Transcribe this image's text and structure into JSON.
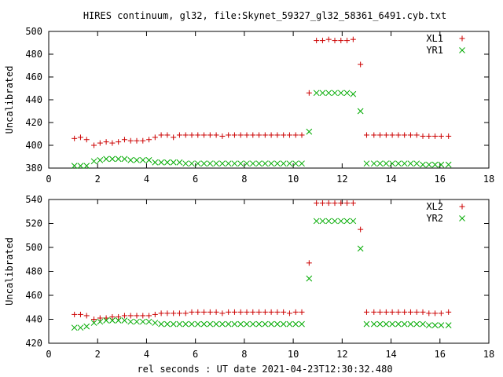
{
  "title": "HIRES continuum, gl32, file:Skynet_59327_gl32_58361_6491.cyb.txt",
  "xlabel": "rel seconds : UT date 2021-04-23T12:30:32.480",
  "chart_data": [
    {
      "type": "scatter",
      "title": "HIRES continuum, gl32, file:Skynet_59327_gl32_58361_6491.cyb.txt",
      "xlabel": "",
      "ylabel": "Uncalibrated",
      "xlim": [
        0,
        18
      ],
      "ylim": [
        380,
        500
      ],
      "xticks": [
        0,
        2,
        4,
        6,
        8,
        10,
        12,
        14,
        16,
        18
      ],
      "yticks": [
        380,
        400,
        420,
        440,
        460,
        480,
        500
      ],
      "grid": false,
      "legend": "top-right",
      "series": [
        {
          "name": "XL1",
          "marker": "plus",
          "color": "#cc0000",
          "x": [
            1.05,
            1.3,
            1.55,
            1.85,
            2.1,
            2.35,
            2.6,
            2.85,
            3.1,
            3.35,
            3.6,
            3.85,
            4.1,
            4.35,
            4.6,
            4.85,
            5.1,
            5.35,
            5.6,
            5.85,
            6.1,
            6.35,
            6.6,
            6.85,
            7.1,
            7.35,
            7.6,
            7.85,
            8.1,
            8.35,
            8.6,
            8.85,
            9.1,
            9.35,
            9.6,
            9.85,
            10.1,
            10.35,
            10.65,
            10.95,
            11.2,
            11.45,
            11.7,
            11.95,
            12.2,
            12.45,
            12.75,
            13.0,
            13.3,
            13.55,
            13.8,
            14.05,
            14.3,
            14.55,
            14.8,
            15.05,
            15.3,
            15.55,
            15.8,
            16.05,
            16.35
          ],
          "y": [
            406,
            407,
            405,
            400,
            402,
            403,
            402,
            403,
            405,
            404,
            404,
            404,
            405,
            407,
            409,
            409,
            407,
            409,
            409,
            409,
            409,
            409,
            409,
            409,
            408,
            409,
            409,
            409,
            409,
            409,
            409,
            409,
            409,
            409,
            409,
            409,
            409,
            409,
            446,
            492,
            492,
            493,
            492,
            492,
            492,
            493,
            471,
            409,
            409,
            409,
            409,
            409,
            409,
            409,
            409,
            409,
            408,
            408,
            408,
            408,
            408
          ]
        },
        {
          "name": "YR1",
          "marker": "cross",
          "color": "#00aa00",
          "x": [
            1.05,
            1.3,
            1.55,
            1.85,
            2.1,
            2.35,
            2.6,
            2.85,
            3.1,
            3.35,
            3.6,
            3.85,
            4.1,
            4.35,
            4.6,
            4.85,
            5.1,
            5.35,
            5.6,
            5.85,
            6.1,
            6.35,
            6.6,
            6.85,
            7.1,
            7.35,
            7.6,
            7.85,
            8.1,
            8.35,
            8.6,
            8.85,
            9.1,
            9.35,
            9.6,
            9.85,
            10.1,
            10.35,
            10.65,
            10.95,
            11.2,
            11.45,
            11.7,
            11.95,
            12.2,
            12.45,
            12.75,
            13.0,
            13.3,
            13.55,
            13.8,
            14.05,
            14.3,
            14.55,
            14.8,
            15.05,
            15.3,
            15.55,
            15.8,
            16.05,
            16.35
          ],
          "y": [
            382,
            382,
            382,
            386,
            387,
            388,
            388,
            388,
            388,
            387,
            387,
            387,
            387,
            385,
            385,
            385,
            385,
            385,
            384,
            384,
            384,
            384,
            384,
            384,
            384,
            384,
            384,
            384,
            384,
            384,
            384,
            384,
            384,
            384,
            384,
            384,
            384,
            384,
            412,
            446,
            446,
            446,
            446,
            446,
            446,
            445,
            430,
            384,
            384,
            384,
            384,
            384,
            384,
            384,
            384,
            384,
            383,
            383,
            383,
            383,
            383
          ]
        }
      ]
    },
    {
      "type": "scatter",
      "title": "",
      "xlabel": "rel seconds : UT date 2021-04-23T12:30:32.480",
      "ylabel": "Uncalibrated",
      "xlim": [
        0,
        18
      ],
      "ylim": [
        420,
        540
      ],
      "xticks": [
        0,
        2,
        4,
        6,
        8,
        10,
        12,
        14,
        16,
        18
      ],
      "yticks": [
        420,
        440,
        460,
        480,
        500,
        520,
        540
      ],
      "grid": false,
      "legend": "top-right",
      "series": [
        {
          "name": "XL2",
          "marker": "plus",
          "color": "#cc0000",
          "x": [
            1.05,
            1.3,
            1.55,
            1.85,
            2.1,
            2.35,
            2.6,
            2.85,
            3.1,
            3.35,
            3.6,
            3.85,
            4.1,
            4.35,
            4.6,
            4.85,
            5.1,
            5.35,
            5.6,
            5.85,
            6.1,
            6.35,
            6.6,
            6.85,
            7.1,
            7.35,
            7.6,
            7.85,
            8.1,
            8.35,
            8.6,
            8.85,
            9.1,
            9.35,
            9.6,
            9.85,
            10.1,
            10.35,
            10.65,
            10.95,
            11.2,
            11.45,
            11.7,
            11.95,
            12.2,
            12.45,
            12.75,
            13.0,
            13.3,
            13.55,
            13.8,
            14.05,
            14.3,
            14.55,
            14.8,
            15.05,
            15.3,
            15.55,
            15.8,
            16.05,
            16.35
          ],
          "y": [
            444,
            444,
            443,
            440,
            441,
            441,
            442,
            442,
            443,
            443,
            443,
            443,
            443,
            444,
            445,
            445,
            445,
            445,
            445,
            446,
            446,
            446,
            446,
            446,
            445,
            446,
            446,
            446,
            446,
            446,
            446,
            446,
            446,
            446,
            446,
            445,
            446,
            446,
            487,
            537,
            537,
            537,
            537,
            537,
            537,
            537,
            515,
            446,
            446,
            446,
            446,
            446,
            446,
            446,
            446,
            446,
            446,
            445,
            445,
            445,
            446
          ]
        },
        {
          "name": "YR2",
          "marker": "cross",
          "color": "#00aa00",
          "x": [
            1.05,
            1.3,
            1.55,
            1.85,
            2.1,
            2.35,
            2.6,
            2.85,
            3.1,
            3.35,
            3.6,
            3.85,
            4.1,
            4.35,
            4.6,
            4.85,
            5.1,
            5.35,
            5.6,
            5.85,
            6.1,
            6.35,
            6.6,
            6.85,
            7.1,
            7.35,
            7.6,
            7.85,
            8.1,
            8.35,
            8.6,
            8.85,
            9.1,
            9.35,
            9.6,
            9.85,
            10.1,
            10.35,
            10.65,
            10.95,
            11.2,
            11.45,
            11.7,
            11.95,
            12.2,
            12.45,
            12.75,
            13.0,
            13.3,
            13.55,
            13.8,
            14.05,
            14.3,
            14.55,
            14.8,
            15.05,
            15.3,
            15.55,
            15.8,
            16.05,
            16.35
          ],
          "y": [
            433,
            433,
            434,
            437,
            438,
            439,
            439,
            439,
            439,
            438,
            438,
            438,
            438,
            437,
            436,
            436,
            436,
            436,
            436,
            436,
            436,
            436,
            436,
            436,
            436,
            436,
            436,
            436,
            436,
            436,
            436,
            436,
            436,
            436,
            436,
            436,
            436,
            436,
            474,
            522,
            522,
            522,
            522,
            522,
            522,
            522,
            499,
            436,
            436,
            436,
            436,
            436,
            436,
            436,
            436,
            436,
            436,
            435,
            435,
            435,
            435
          ]
        }
      ]
    }
  ]
}
